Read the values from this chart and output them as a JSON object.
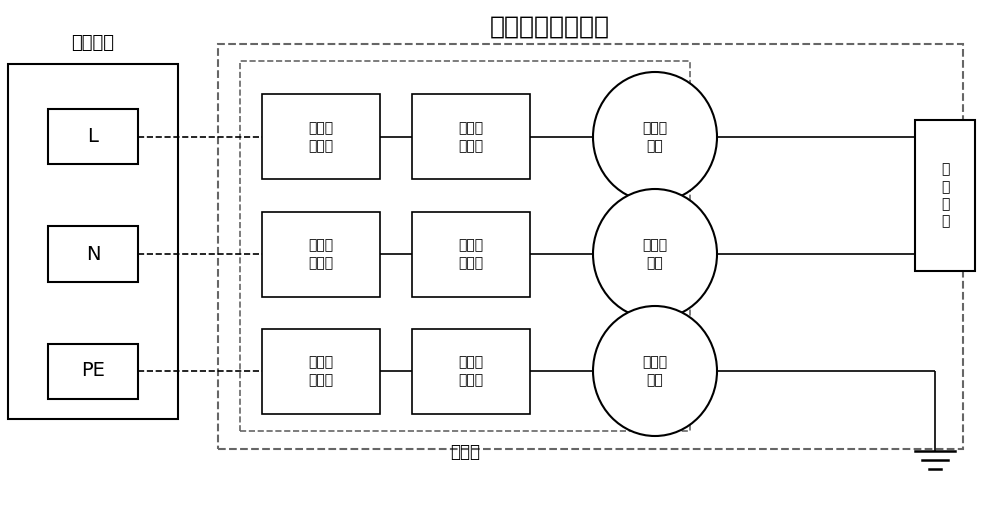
{
  "title": "共模干扰抑制装置",
  "title_fontsize": 18,
  "bg_color": "#ffffff",
  "line_color": "#000000",
  "dashed_color": "#666666",
  "label_ac": "交流电源",
  "label_L": "L",
  "label_N": "N",
  "label_PE": "PE",
  "box_in_labels": [
    "火线输\n入端子",
    "零线输\n入端子",
    "地线输\n入端子"
  ],
  "box_out_labels": [
    "火线输\n出端子",
    "零线输\n出端子",
    "地线输\n出端子"
  ],
  "filter_labels": [
    "第一滤\n波器",
    "第二滤\n波器",
    "第三滤\n波器"
  ],
  "label_jxp": "接线盘",
  "label_vfd": "变\n频\n电\n器",
  "fontsize": 13,
  "small_fontsize": 12,
  "cjk_font": "SimSun"
}
